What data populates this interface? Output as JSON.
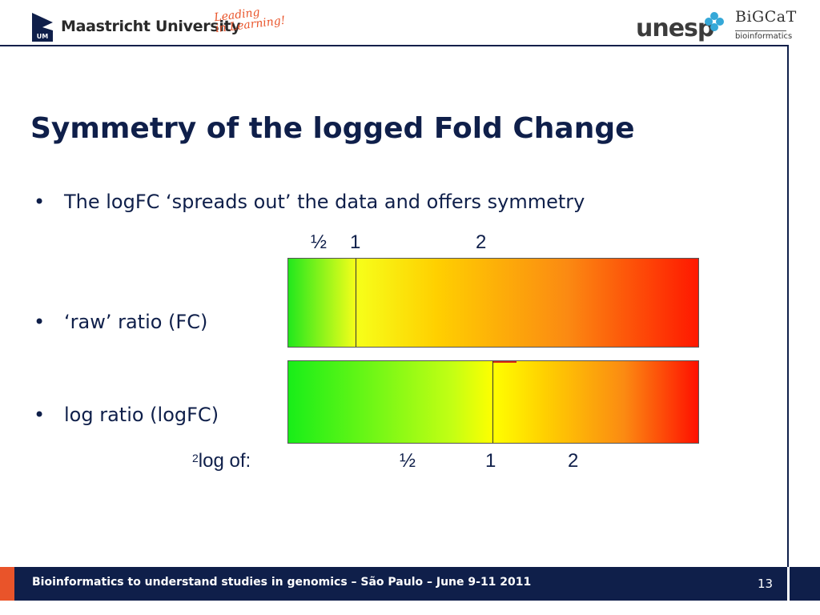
{
  "header": {
    "university_name": "Maastricht University",
    "tagline_line1": "Leading",
    "tagline_line2": "in Learning!",
    "partner_logo_text": "unesp",
    "bigcat_name": "BiGCaT",
    "bigcat_sub": "bioinformatics"
  },
  "slide": {
    "title": "Symmetry of the logged Fold Change",
    "bullets": [
      "The logFC ‘spreads out’ the data and offers symmetry",
      "‘raw’ ratio (FC)",
      "log ratio (logFC)"
    ],
    "raw_scale": {
      "tick_half": "½",
      "tick_one": "1",
      "tick_two": "2"
    },
    "log_scale": {
      "caption_sup": "2",
      "caption": "log of:",
      "tick_half": "½",
      "tick_one": "1",
      "tick_two": "2"
    },
    "colors": {
      "low": "#22e81c",
      "mid": "#ffff00",
      "high": "#ff1800"
    }
  },
  "footer": {
    "text": "Bioinformatics to understand studies in genomics – São Paulo – June 9-11 2011",
    "page_number": "13"
  }
}
